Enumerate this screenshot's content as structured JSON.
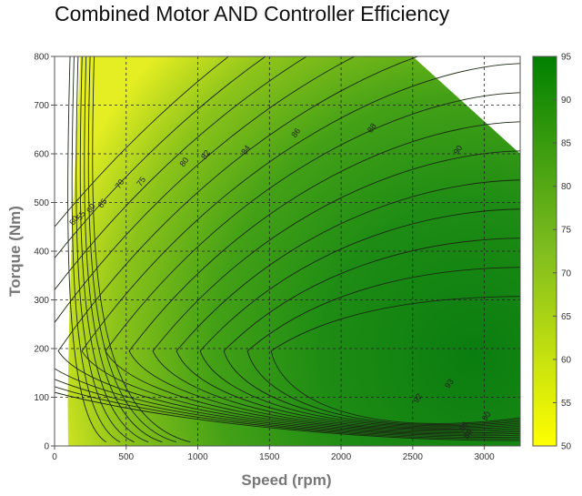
{
  "chart_data": {
    "type": "heatmap",
    "title": "Combined Motor AND Controller Efficiency",
    "xlabel": "Speed (rpm)",
    "ylabel": "Torque (Nm)",
    "xlim": [
      0,
      3250
    ],
    "ylim": [
      0,
      800
    ],
    "x_ticks": [
      "0",
      "500",
      "1000",
      "1500",
      "2000",
      "2500",
      "3000"
    ],
    "y_ticks": [
      "0",
      "100",
      "200",
      "300",
      "400",
      "500",
      "600",
      "700",
      "800"
    ],
    "grid": true,
    "colorbar": {
      "ticks": [
        "50",
        "55",
        "60",
        "65",
        "70",
        "75",
        "80",
        "85",
        "90",
        "95"
      ],
      "range": [
        50,
        95
      ],
      "colors": [
        "#ffff00",
        "#008000"
      ]
    },
    "max_torque_boundary": [
      [
        2500,
        800
      ],
      [
        3250,
        600
      ]
    ],
    "contour_levels": [
      50,
      55,
      60,
      65,
      70,
      75,
      80,
      82,
      84,
      86,
      88,
      90,
      92,
      93
    ],
    "contour_labels": [
      {
        "text": "50",
        "x": 150,
        "y": 460
      },
      {
        "text": "55",
        "x": 200,
        "y": 470
      },
      {
        "text": "60",
        "x": 270,
        "y": 485
      },
      {
        "text": "65",
        "x": 350,
        "y": 495
      },
      {
        "text": "70",
        "x": 470,
        "y": 535
      },
      {
        "text": "75",
        "x": 620,
        "y": 540
      },
      {
        "text": "80",
        "x": 920,
        "y": 580
      },
      {
        "text": "82",
        "x": 1070,
        "y": 595
      },
      {
        "text": "84",
        "x": 1350,
        "y": 605
      },
      {
        "text": "86",
        "x": 1700,
        "y": 640
      },
      {
        "text": "88",
        "x": 2230,
        "y": 650
      },
      {
        "text": "90",
        "x": 2830,
        "y": 605
      },
      {
        "text": "93",
        "x": 2770,
        "y": 125
      },
      {
        "text": "92",
        "x": 2550,
        "y": 95
      },
      {
        "text": "90",
        "x": 3030,
        "y": 58
      },
      {
        "text": "88",
        "x": 2870,
        "y": 37
      },
      {
        "text": "86",
        "x": 2900,
        "y": 22
      }
    ]
  }
}
